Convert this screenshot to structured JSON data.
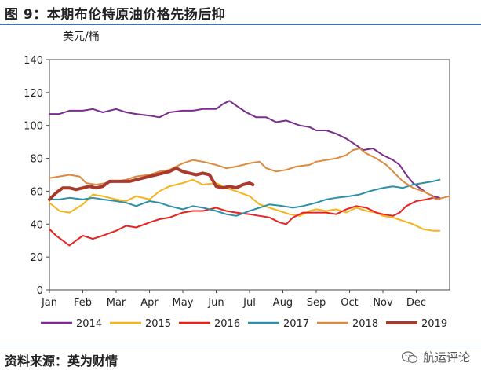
{
  "title": "图 9：本期布伦特原油价格先扬后抑",
  "source": "资料来源：英为财情",
  "watermark": "航运评论",
  "chart_data": {
    "type": "line",
    "ylabel": "美元/桶",
    "ylim": [
      0,
      140
    ],
    "yticks": [
      0,
      20,
      40,
      60,
      80,
      100,
      120,
      140
    ],
    "xticks": [
      "Jan",
      "Feb",
      "Mar",
      "Apr",
      "May",
      "Jun",
      "Jul",
      "Aug",
      "Sep",
      "Oct",
      "Nov",
      "Dec"
    ],
    "x_unit": "month_fraction",
    "legend_position": "bottom",
    "series": [
      {
        "name": "2014",
        "color": "#7b2d8e",
        "width": 2,
        "points": [
          [
            0.0,
            107
          ],
          [
            0.3,
            107
          ],
          [
            0.6,
            109
          ],
          [
            1.0,
            109
          ],
          [
            1.3,
            110
          ],
          [
            1.6,
            108
          ],
          [
            2.0,
            110
          ],
          [
            2.3,
            108
          ],
          [
            2.6,
            107
          ],
          [
            3.0,
            106
          ],
          [
            3.3,
            105
          ],
          [
            3.6,
            108
          ],
          [
            4.0,
            109
          ],
          [
            4.3,
            109
          ],
          [
            4.6,
            110
          ],
          [
            5.0,
            110
          ],
          [
            5.2,
            113
          ],
          [
            5.4,
            115
          ],
          [
            5.6,
            112
          ],
          [
            5.9,
            108
          ],
          [
            6.2,
            105
          ],
          [
            6.5,
            105
          ],
          [
            6.8,
            102
          ],
          [
            7.1,
            103
          ],
          [
            7.5,
            100
          ],
          [
            7.8,
            99
          ],
          [
            8.0,
            97
          ],
          [
            8.3,
            97
          ],
          [
            8.6,
            95
          ],
          [
            8.9,
            92
          ],
          [
            9.2,
            88
          ],
          [
            9.4,
            85
          ],
          [
            9.7,
            86
          ],
          [
            10.0,
            82
          ],
          [
            10.3,
            79
          ],
          [
            10.5,
            76
          ],
          [
            10.7,
            70
          ],
          [
            10.9,
            65
          ],
          [
            11.1,
            62
          ],
          [
            11.3,
            59
          ],
          [
            11.5,
            57
          ],
          [
            11.7,
            56
          ]
        ]
      },
      {
        "name": "2015",
        "color": "#f5b41b",
        "width": 2,
        "points": [
          [
            0.0,
            53
          ],
          [
            0.3,
            48
          ],
          [
            0.6,
            47
          ],
          [
            1.0,
            52
          ],
          [
            1.3,
            58
          ],
          [
            1.6,
            57
          ],
          [
            2.0,
            55
          ],
          [
            2.3,
            54
          ],
          [
            2.6,
            57
          ],
          [
            3.0,
            55
          ],
          [
            3.3,
            60
          ],
          [
            3.6,
            63
          ],
          [
            4.0,
            65
          ],
          [
            4.3,
            67
          ],
          [
            4.6,
            64
          ],
          [
            5.0,
            65
          ],
          [
            5.3,
            62
          ],
          [
            5.6,
            60
          ],
          [
            6.0,
            57
          ],
          [
            6.3,
            52
          ],
          [
            6.6,
            50
          ],
          [
            6.9,
            48
          ],
          [
            7.2,
            46
          ],
          [
            7.5,
            45
          ],
          [
            7.8,
            48
          ],
          [
            8.0,
            49
          ],
          [
            8.3,
            48
          ],
          [
            8.6,
            49
          ],
          [
            8.9,
            47
          ],
          [
            9.2,
            50
          ],
          [
            9.5,
            48
          ],
          [
            9.8,
            47
          ],
          [
            10.0,
            45
          ],
          [
            10.3,
            44
          ],
          [
            10.6,
            42
          ],
          [
            10.9,
            40
          ],
          [
            11.2,
            37
          ],
          [
            11.5,
            36
          ],
          [
            11.7,
            36
          ]
        ]
      },
      {
        "name": "2016",
        "color": "#e8231f",
        "width": 2,
        "points": [
          [
            0.0,
            37
          ],
          [
            0.2,
            33
          ],
          [
            0.4,
            30
          ],
          [
            0.6,
            27
          ],
          [
            0.8,
            30
          ],
          [
            1.0,
            33
          ],
          [
            1.3,
            31
          ],
          [
            1.6,
            33
          ],
          [
            2.0,
            36
          ],
          [
            2.3,
            39
          ],
          [
            2.6,
            38
          ],
          [
            3.0,
            41
          ],
          [
            3.3,
            43
          ],
          [
            3.6,
            44
          ],
          [
            4.0,
            47
          ],
          [
            4.3,
            48
          ],
          [
            4.6,
            48
          ],
          [
            5.0,
            50
          ],
          [
            5.3,
            48
          ],
          [
            5.6,
            47
          ],
          [
            6.0,
            46
          ],
          [
            6.3,
            45
          ],
          [
            6.6,
            44
          ],
          [
            6.9,
            41
          ],
          [
            7.1,
            40
          ],
          [
            7.3,
            44
          ],
          [
            7.6,
            47
          ],
          [
            8.0,
            47
          ],
          [
            8.3,
            47
          ],
          [
            8.6,
            46
          ],
          [
            8.9,
            49
          ],
          [
            9.2,
            51
          ],
          [
            9.5,
            50
          ],
          [
            9.8,
            47
          ],
          [
            10.0,
            46
          ],
          [
            10.3,
            45
          ],
          [
            10.5,
            47
          ],
          [
            10.7,
            51
          ],
          [
            11.0,
            54
          ],
          [
            11.3,
            55
          ],
          [
            11.5,
            56
          ],
          [
            11.7,
            55
          ]
        ]
      },
      {
        "name": "2017",
        "color": "#2e8fa8",
        "width": 2,
        "points": [
          [
            0.0,
            55
          ],
          [
            0.3,
            55
          ],
          [
            0.6,
            56
          ],
          [
            1.0,
            55
          ],
          [
            1.3,
            56
          ],
          [
            1.6,
            55
          ],
          [
            2.0,
            54
          ],
          [
            2.3,
            53
          ],
          [
            2.6,
            51
          ],
          [
            3.0,
            54
          ],
          [
            3.3,
            53
          ],
          [
            3.6,
            51
          ],
          [
            4.0,
            49
          ],
          [
            4.3,
            51
          ],
          [
            4.6,
            50
          ],
          [
            5.0,
            48
          ],
          [
            5.3,
            46
          ],
          [
            5.6,
            45
          ],
          [
            6.0,
            48
          ],
          [
            6.3,
            50
          ],
          [
            6.6,
            52
          ],
          [
            7.0,
            51
          ],
          [
            7.3,
            50
          ],
          [
            7.6,
            51
          ],
          [
            8.0,
            53
          ],
          [
            8.3,
            55
          ],
          [
            8.6,
            56
          ],
          [
            9.0,
            57
          ],
          [
            9.3,
            58
          ],
          [
            9.6,
            60
          ],
          [
            10.0,
            62
          ],
          [
            10.3,
            63
          ],
          [
            10.6,
            62
          ],
          [
            10.9,
            64
          ],
          [
            11.2,
            65
          ],
          [
            11.5,
            66
          ],
          [
            11.7,
            67
          ]
        ]
      },
      {
        "name": "2018",
        "color": "#dd8a3e",
        "width": 2,
        "points": [
          [
            0.0,
            68
          ],
          [
            0.3,
            69
          ],
          [
            0.6,
            70
          ],
          [
            0.9,
            69
          ],
          [
            1.1,
            65
          ],
          [
            1.4,
            64
          ],
          [
            1.7,
            65
          ],
          [
            2.0,
            66
          ],
          [
            2.3,
            67
          ],
          [
            2.6,
            69
          ],
          [
            3.0,
            70
          ],
          [
            3.3,
            72
          ],
          [
            3.6,
            73
          ],
          [
            4.0,
            77
          ],
          [
            4.3,
            79
          ],
          [
            4.6,
            78
          ],
          [
            5.0,
            76
          ],
          [
            5.3,
            74
          ],
          [
            5.6,
            75
          ],
          [
            6.0,
            77
          ],
          [
            6.3,
            78
          ],
          [
            6.5,
            74
          ],
          [
            6.8,
            72
          ],
          [
            7.1,
            73
          ],
          [
            7.4,
            75
          ],
          [
            7.8,
            76
          ],
          [
            8.0,
            78
          ],
          [
            8.3,
            79
          ],
          [
            8.6,
            80
          ],
          [
            8.9,
            82
          ],
          [
            9.1,
            85
          ],
          [
            9.3,
            86
          ],
          [
            9.5,
            83
          ],
          [
            9.8,
            80
          ],
          [
            10.1,
            76
          ],
          [
            10.3,
            72
          ],
          [
            10.6,
            66
          ],
          [
            10.9,
            62
          ],
          [
            11.2,
            60
          ],
          [
            11.4,
            58
          ],
          [
            11.6,
            55
          ],
          [
            11.8,
            56
          ],
          [
            12.0,
            57
          ]
        ]
      },
      {
        "name": "2019",
        "color": "#a8392c",
        "width": 4,
        "points": [
          [
            0.0,
            55
          ],
          [
            0.2,
            59
          ],
          [
            0.4,
            62
          ],
          [
            0.6,
            62
          ],
          [
            0.8,
            61
          ],
          [
            1.0,
            62
          ],
          [
            1.2,
            63
          ],
          [
            1.4,
            62
          ],
          [
            1.6,
            63
          ],
          [
            1.8,
            66
          ],
          [
            2.0,
            66
          ],
          [
            2.2,
            66
          ],
          [
            2.4,
            66
          ],
          [
            2.6,
            67
          ],
          [
            2.8,
            68
          ],
          [
            3.0,
            69
          ],
          [
            3.2,
            70
          ],
          [
            3.4,
            71
          ],
          [
            3.6,
            72
          ],
          [
            3.8,
            74
          ],
          [
            4.0,
            72
          ],
          [
            4.2,
            71
          ],
          [
            4.4,
            70
          ],
          [
            4.6,
            71
          ],
          [
            4.8,
            70
          ],
          [
            5.0,
            63
          ],
          [
            5.2,
            62
          ],
          [
            5.4,
            63
          ],
          [
            5.6,
            62
          ],
          [
            5.8,
            64
          ],
          [
            6.0,
            65
          ],
          [
            6.1,
            64
          ]
        ]
      }
    ]
  }
}
